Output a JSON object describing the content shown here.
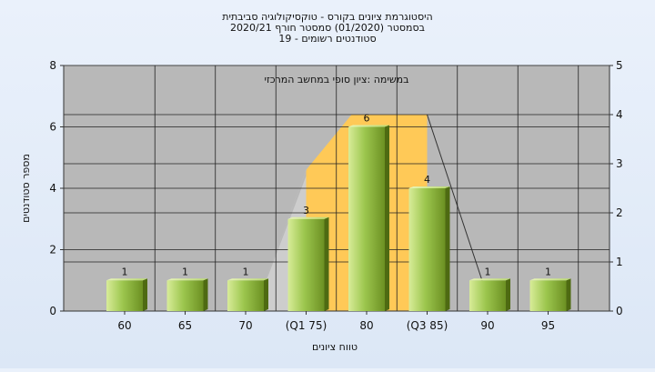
{
  "chart_data": {
    "type": "bar",
    "title_lines": [
      "היסטוגרמת ציונים בקורס - טוקסיקולוגיה סביבתית",
      "בסמסטר  (01/2020)  סמסטר חורף  2020/21",
      "סטודנטים רשומים - 19"
    ],
    "annotation": "במשימה :ציון סופי במחשב המרכזי",
    "xlabel": "טווח ציונים",
    "ylabel": "מספר סטודנטים",
    "categories": [
      "60",
      "65",
      "70",
      "(Q1 75)",
      "80",
      "(Q3 85)",
      "90",
      "95"
    ],
    "values": [
      1,
      1,
      1,
      3,
      6,
      4,
      1,
      1
    ],
    "value_labels": [
      "1",
      "1",
      "1",
      "3",
      "6",
      "4",
      "1",
      "1"
    ],
    "ylim": [
      0,
      8
    ],
    "yticks": [
      0,
      2,
      4,
      6,
      8
    ],
    "y2lim": [
      0,
      5
    ],
    "y2ticks": [
      0,
      1,
      2,
      3,
      4,
      5
    ],
    "iqr_band": {
      "from_category": "(Q1 75)",
      "to_category": "(Q3 85)",
      "height": 6.4
    },
    "grid": true,
    "colors": {
      "plot_bg": "#b8b8b8",
      "bar_light": "#d8ec98",
      "bar_mid": "#9cc64e",
      "bar_dark": "#6c9022",
      "band": "#ffc957",
      "wedge": "#cdcdcd"
    }
  }
}
